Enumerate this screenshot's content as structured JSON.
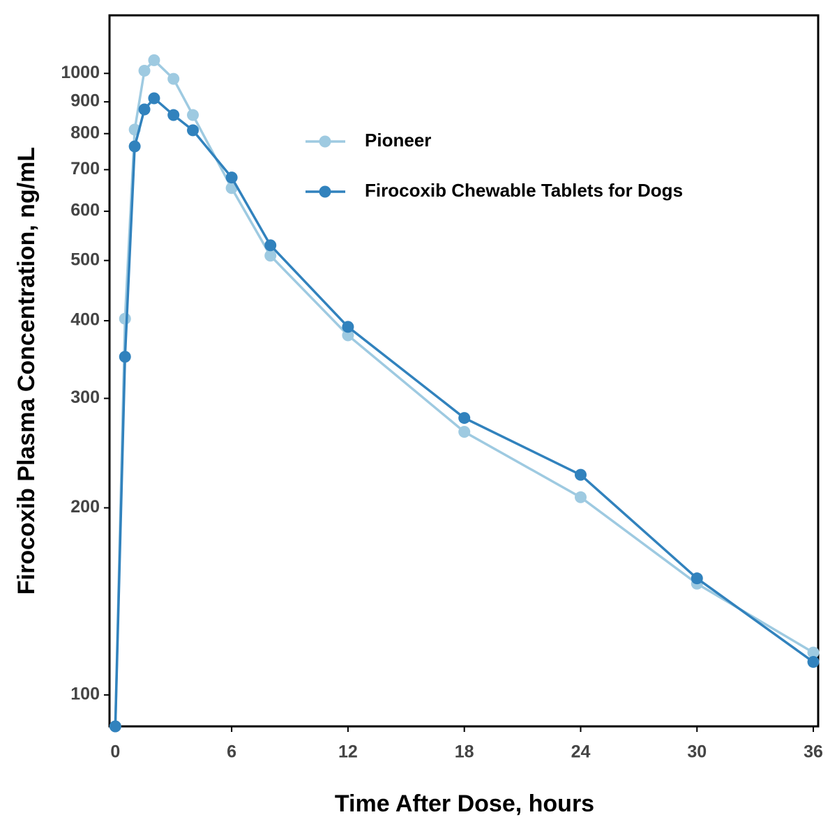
{
  "chart_data": {
    "type": "line",
    "xlabel": "Time After Dose, hours",
    "ylabel": "Firocoxib Plasma Concentration, ng/mL",
    "x": [
      0,
      0.5,
      1,
      1.5,
      2,
      3,
      4,
      6,
      8,
      12,
      18,
      24,
      30,
      36
    ],
    "series": [
      {
        "name": "Pioneer",
        "color": "#9ecae1",
        "values": [
          89,
          403,
          812,
          1010,
          1050,
          980,
          857,
          654,
          509,
          379,
          265,
          208,
          151,
          117
        ]
      },
      {
        "name": "Firocoxib Chewable Tablets for Dogs",
        "color": "#3182bd",
        "values": [
          89,
          350,
          763,
          875,
          912,
          857,
          810,
          680,
          529,
          391,
          279,
          226,
          154,
          113
        ]
      }
    ],
    "xlim": [
      -0.3,
      36.25
    ],
    "xticks": [
      0,
      6,
      12,
      18,
      24,
      30,
      36
    ],
    "ylim": [
      89,
      1240
    ],
    "yticks": [
      100,
      200,
      300,
      400,
      500,
      600,
      700,
      800,
      900,
      1000
    ],
    "log_y": true,
    "grid": false,
    "legend": "top-right"
  }
}
